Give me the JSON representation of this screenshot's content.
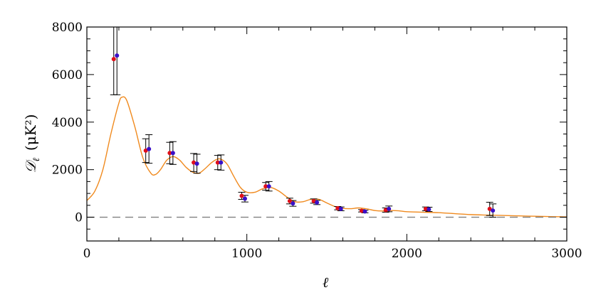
{
  "chart_data": {
    "type": "scatter",
    "title": "",
    "xlabel": "ℓ",
    "ylabel_symbol": "𝒟",
    "ylabel_subscript": "ℓ",
    "ylabel_units": "(μK²)",
    "xlim": [
      0,
      3000
    ],
    "ylim": [
      -1000,
      8000
    ],
    "x_ticks": [
      0,
      1000,
      2000,
      3000
    ],
    "y_ticks": [
      0,
      2000,
      4000,
      6000,
      8000
    ],
    "grid": false,
    "zero_line": true,
    "colors": {
      "model": "#f08a1e",
      "series_a": "#e0101a",
      "series_b": "#3a10c8",
      "errorbar": "#000000",
      "zero_line": "#808080"
    },
    "model_curve": {
      "x": [
        0,
        50,
        100,
        150,
        200,
        220,
        250,
        300,
        350,
        400,
        430,
        460,
        500,
        540,
        580,
        620,
        660,
        700,
        740,
        780,
        820,
        850,
        880,
        920,
        960,
        1000,
        1050,
        1100,
        1150,
        1200,
        1250,
        1300,
        1350,
        1400,
        1450,
        1500,
        1550,
        1600,
        1650,
        1700,
        1750,
        1800,
        1850,
        1900,
        1950,
        2000,
        2100,
        2200,
        2300,
        2400,
        2500,
        2600,
        2700,
        2800,
        2900,
        3000
      ],
      "y": [
        700,
        1100,
        2000,
        3500,
        4800,
        5050,
        4900,
        3800,
        2500,
        1850,
        1800,
        2000,
        2400,
        2550,
        2400,
        2100,
        1900,
        1850,
        2050,
        2300,
        2450,
        2400,
        2200,
        1700,
        1250,
        1050,
        1050,
        1200,
        1250,
        1100,
        850,
        650,
        650,
        750,
        750,
        600,
        450,
        370,
        360,
        390,
        350,
        280,
        260,
        280,
        270,
        230,
        210,
        190,
        150,
        110,
        90,
        75,
        55,
        40,
        25,
        15
      ]
    },
    "series": [
      {
        "x": [
          168,
          368,
          518,
          668,
          818,
          968,
          1118,
          1268,
          1418,
          1568,
          1718,
          1868,
          2118,
          2518
        ],
        "y": [
          6650,
          2800,
          2700,
          2300,
          2300,
          900,
          1300,
          680,
          680,
          380,
          270,
          300,
          350,
          350
        ],
        "yerr": [
          1500,
          500,
          450,
          380,
          300,
          150,
          160,
          120,
          90,
          70,
          50,
          90,
          80,
          280
        ]
      },
      {
        "x": [
          188,
          388,
          538,
          688,
          838,
          988,
          1138,
          1288,
          1438,
          1588,
          1738,
          1888,
          2138,
          2538
        ],
        "y": [
          6800,
          2870,
          2700,
          2250,
          2300,
          780,
          1300,
          580,
          620,
          350,
          240,
          350,
          330,
          280
        ],
        "yerr": [
          1650,
          600,
          480,
          400,
          320,
          140,
          200,
          120,
          90,
          80,
          55,
          120,
          90,
          280
        ]
      }
    ]
  }
}
